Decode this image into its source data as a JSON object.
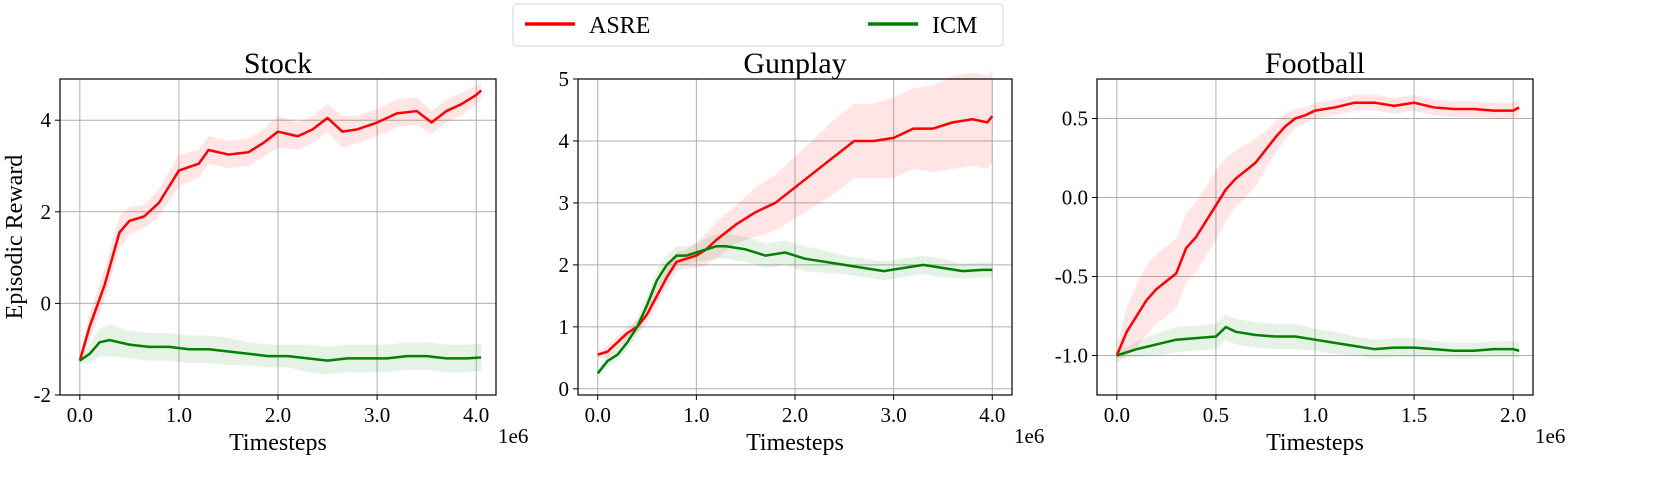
{
  "legend": [
    {
      "label": "ASRE",
      "color": "#ff0000"
    },
    {
      "label": "ICM",
      "color": "#008000"
    }
  ],
  "ylabel": "Episodic Reward",
  "chart_data": [
    {
      "type": "line",
      "title": "Stock",
      "xlabel": "Timesteps",
      "x_offset_label": "1e6",
      "xlim": [
        -0.2,
        4.2
      ],
      "ylim": [
        -2,
        4.9
      ],
      "xticks": [
        0.0,
        1.0,
        2.0,
        3.0,
        4.0
      ],
      "xtick_labels": [
        "0.0",
        "1.0",
        "2.0",
        "3.0",
        "4.0"
      ],
      "yticks": [
        -2,
        0,
        2,
        4
      ],
      "ytick_labels": [
        "-2",
        "0",
        "2",
        "4"
      ],
      "grid": true,
      "series": [
        {
          "name": "ASRE",
          "color": "#ff0000",
          "x": [
            0,
            0.1,
            0.25,
            0.4,
            0.5,
            0.65,
            0.8,
            1.0,
            1.2,
            1.3,
            1.5,
            1.7,
            1.85,
            2.0,
            2.2,
            2.35,
            2.5,
            2.65,
            2.8,
            3.0,
            3.2,
            3.4,
            3.55,
            3.7,
            3.85,
            4.0,
            4.05
          ],
          "y": [
            -1.25,
            -0.5,
            0.4,
            1.55,
            1.8,
            1.9,
            2.2,
            2.9,
            3.05,
            3.35,
            3.25,
            3.3,
            3.5,
            3.75,
            3.65,
            3.8,
            4.05,
            3.75,
            3.8,
            3.95,
            4.15,
            4.2,
            3.95,
            4.2,
            4.35,
            4.55,
            4.65
          ],
          "band": [
            0.05,
            0.3,
            0.35,
            0.35,
            0.3,
            0.25,
            0.3,
            0.35,
            0.3,
            0.3,
            0.3,
            0.3,
            0.3,
            0.35,
            0.3,
            0.3,
            0.3,
            0.35,
            0.3,
            0.3,
            0.3,
            0.3,
            0.25,
            0.25,
            0.25,
            0.2,
            0.2
          ]
        },
        {
          "name": "ICM",
          "color": "#008000",
          "x": [
            0,
            0.1,
            0.2,
            0.3,
            0.5,
            0.7,
            0.9,
            1.1,
            1.3,
            1.5,
            1.7,
            1.9,
            2.1,
            2.3,
            2.5,
            2.7,
            2.9,
            3.1,
            3.3,
            3.5,
            3.7,
            3.9,
            4.05
          ],
          "y": [
            -1.25,
            -1.1,
            -0.85,
            -0.8,
            -0.9,
            -0.95,
            -0.95,
            -1.0,
            -1.0,
            -1.05,
            -1.1,
            -1.15,
            -1.15,
            -1.2,
            -1.25,
            -1.2,
            -1.2,
            -1.2,
            -1.15,
            -1.15,
            -1.2,
            -1.2,
            -1.18
          ],
          "band": [
            0.05,
            0.2,
            0.3,
            0.35,
            0.3,
            0.3,
            0.3,
            0.3,
            0.3,
            0.3,
            0.25,
            0.25,
            0.25,
            0.3,
            0.3,
            0.3,
            0.3,
            0.3,
            0.3,
            0.3,
            0.3,
            0.3,
            0.3
          ]
        }
      ]
    },
    {
      "type": "line",
      "title": "Gunplay",
      "xlabel": "Timesteps",
      "x_offset_label": "1e6",
      "xlim": [
        -0.2,
        4.2
      ],
      "ylim": [
        -0.1,
        5.0
      ],
      "xticks": [
        0.0,
        1.0,
        2.0,
        3.0,
        4.0
      ],
      "xtick_labels": [
        "0.0",
        "1.0",
        "2.0",
        "3.0",
        "4.0"
      ],
      "yticks": [
        0,
        1,
        2,
        3,
        4,
        5
      ],
      "ytick_labels": [
        "0",
        "1",
        "2",
        "3",
        "4",
        "5"
      ],
      "grid": true,
      "series": [
        {
          "name": "ASRE",
          "color": "#ff0000",
          "x": [
            0,
            0.1,
            0.2,
            0.3,
            0.4,
            0.5,
            0.6,
            0.7,
            0.8,
            0.9,
            1.0,
            1.1,
            1.2,
            1.4,
            1.6,
            1.8,
            2.0,
            2.2,
            2.4,
            2.6,
            2.8,
            3.0,
            3.2,
            3.4,
            3.6,
            3.8,
            3.95,
            4.0
          ],
          "y": [
            0.55,
            0.6,
            0.75,
            0.9,
            1.0,
            1.2,
            1.5,
            1.8,
            2.05,
            2.1,
            2.15,
            2.25,
            2.4,
            2.65,
            2.85,
            3.0,
            3.25,
            3.5,
            3.75,
            4.0,
            4.0,
            4.05,
            4.2,
            4.2,
            4.3,
            4.35,
            4.3,
            4.4
          ],
          "band": [
            0.05,
            0.1,
            0.1,
            0.1,
            0.1,
            0.15,
            0.15,
            0.15,
            0.15,
            0.15,
            0.2,
            0.25,
            0.3,
            0.3,
            0.4,
            0.45,
            0.5,
            0.55,
            0.6,
            0.6,
            0.6,
            0.65,
            0.65,
            0.7,
            0.75,
            0.75,
            0.75,
            0.75
          ]
        },
        {
          "name": "ICM",
          "color": "#008000",
          "x": [
            0,
            0.1,
            0.2,
            0.3,
            0.4,
            0.5,
            0.6,
            0.7,
            0.8,
            0.9,
            1.0,
            1.1,
            1.2,
            1.3,
            1.5,
            1.7,
            1.9,
            2.1,
            2.3,
            2.5,
            2.7,
            2.9,
            3.1,
            3.3,
            3.5,
            3.7,
            3.9,
            4.0
          ],
          "y": [
            0.25,
            0.45,
            0.55,
            0.75,
            1.0,
            1.35,
            1.75,
            2.0,
            2.15,
            2.15,
            2.2,
            2.25,
            2.3,
            2.3,
            2.25,
            2.15,
            2.2,
            2.1,
            2.05,
            2.0,
            1.95,
            1.9,
            1.95,
            2.0,
            1.95,
            1.9,
            1.92,
            1.92
          ],
          "band": [
            0.05,
            0.1,
            0.1,
            0.12,
            0.15,
            0.15,
            0.15,
            0.15,
            0.15,
            0.15,
            0.15,
            0.18,
            0.2,
            0.2,
            0.2,
            0.2,
            0.2,
            0.2,
            0.18,
            0.15,
            0.15,
            0.15,
            0.15,
            0.15,
            0.15,
            0.12,
            0.12,
            0.12
          ]
        }
      ]
    },
    {
      "type": "line",
      "title": "Football",
      "xlabel": "Timesteps",
      "x_offset_label": "1e6",
      "xlim": [
        -0.1,
        2.1
      ],
      "ylim": [
        -1.25,
        0.75
      ],
      "xticks": [
        0.0,
        0.5,
        1.0,
        1.5,
        2.0
      ],
      "xtick_labels": [
        "0.0",
        "0.5",
        "1.0",
        "1.5",
        "2.0"
      ],
      "yticks": [
        -1.0,
        -0.5,
        0.0,
        0.5
      ],
      "ytick_labels": [
        "-1.0",
        "-0.5",
        "0.0",
        "0.5"
      ],
      "grid": true,
      "series": [
        {
          "name": "ASRE",
          "color": "#ff0000",
          "x": [
            0,
            0.05,
            0.1,
            0.15,
            0.2,
            0.3,
            0.35,
            0.4,
            0.45,
            0.5,
            0.55,
            0.6,
            0.7,
            0.75,
            0.8,
            0.85,
            0.9,
            0.95,
            1.0,
            1.1,
            1.2,
            1.3,
            1.4,
            1.5,
            1.6,
            1.7,
            1.8,
            1.9,
            2.0,
            2.03
          ],
          "y": [
            -1.0,
            -0.85,
            -0.75,
            -0.65,
            -0.58,
            -0.48,
            -0.32,
            -0.25,
            -0.15,
            -0.05,
            0.05,
            0.12,
            0.22,
            0.3,
            0.38,
            0.45,
            0.5,
            0.52,
            0.55,
            0.57,
            0.6,
            0.6,
            0.58,
            0.6,
            0.57,
            0.56,
            0.56,
            0.55,
            0.55,
            0.57
          ],
          "band": [
            0.05,
            0.15,
            0.2,
            0.22,
            0.22,
            0.22,
            0.22,
            0.22,
            0.22,
            0.22,
            0.2,
            0.18,
            0.15,
            0.12,
            0.1,
            0.08,
            0.06,
            0.05,
            0.05,
            0.05,
            0.05,
            0.05,
            0.05,
            0.05,
            0.05,
            0.05,
            0.05,
            0.05,
            0.05,
            0.05
          ]
        },
        {
          "name": "ICM",
          "color": "#008000",
          "x": [
            0,
            0.1,
            0.2,
            0.3,
            0.4,
            0.5,
            0.55,
            0.6,
            0.7,
            0.8,
            0.9,
            1.0,
            1.1,
            1.2,
            1.3,
            1.4,
            1.5,
            1.6,
            1.7,
            1.8,
            1.9,
            2.0,
            2.03
          ],
          "y": [
            -1.0,
            -0.96,
            -0.93,
            -0.9,
            -0.89,
            -0.88,
            -0.82,
            -0.85,
            -0.87,
            -0.88,
            -0.88,
            -0.9,
            -0.92,
            -0.94,
            -0.96,
            -0.95,
            -0.95,
            -0.96,
            -0.97,
            -0.97,
            -0.96,
            -0.96,
            -0.97
          ],
          "band": [
            0.02,
            0.05,
            0.07,
            0.08,
            0.08,
            0.08,
            0.08,
            0.08,
            0.08,
            0.08,
            0.08,
            0.07,
            0.07,
            0.06,
            0.06,
            0.06,
            0.06,
            0.05,
            0.05,
            0.05,
            0.05,
            0.05,
            0.05
          ]
        }
      ]
    }
  ]
}
